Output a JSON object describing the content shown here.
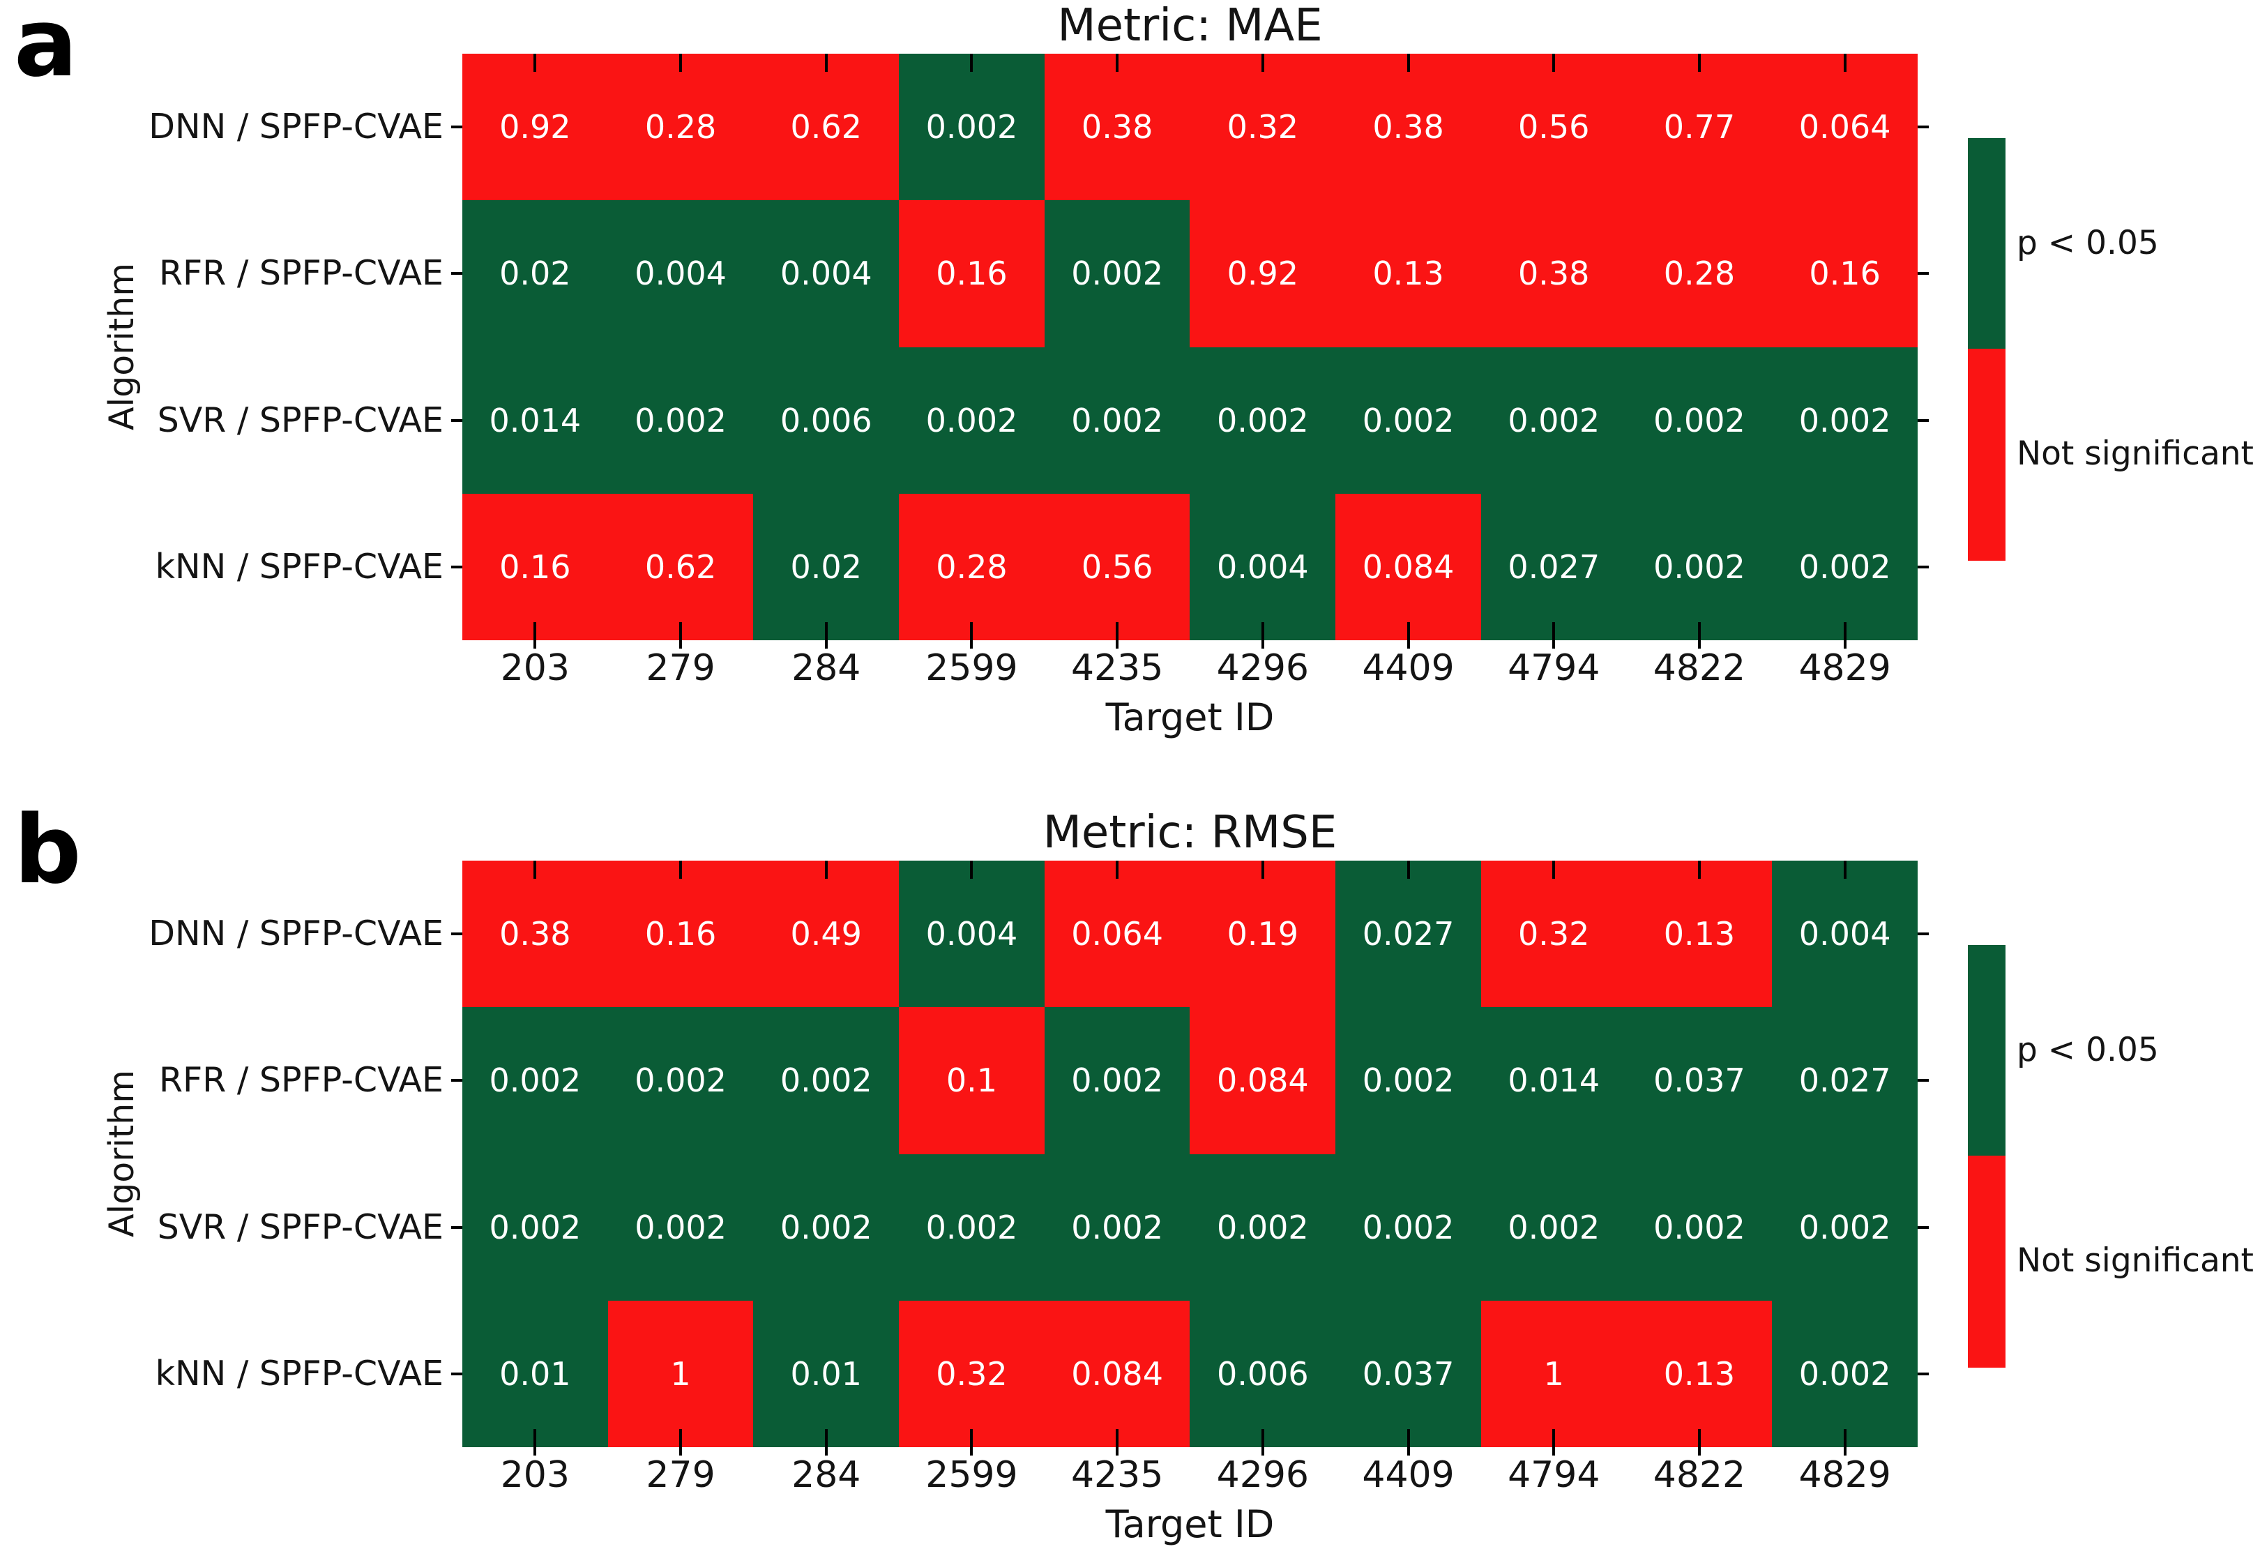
{
  "figure": {
    "panels": [
      {
        "letter": "a",
        "title": "Metric: MAE"
      },
      {
        "letter": "b",
        "title": "Metric: RMSE"
      }
    ],
    "legend": {
      "p_label": "p < 0.05",
      "ns_label": "Not significant"
    },
    "colors": {
      "significant": "#0a5c36",
      "not_significant": "#fa1414",
      "cell_text": "#ffffff",
      "tick": "#000000"
    }
  },
  "chart_data": [
    {
      "type": "heatmap",
      "panel": "a",
      "title": "Metric: MAE",
      "xlabel": "Target ID",
      "ylabel": "Algorithm",
      "columns": [
        "203",
        "279",
        "284",
        "2599",
        "4235",
        "4296",
        "4409",
        "4794",
        "4822",
        "4829"
      ],
      "rows": [
        "DNN / SPFP-CVAE",
        "RFR / SPFP-CVAE",
        "SVR / SPFP-CVAE",
        "kNN / SPFP-CVAE"
      ],
      "values": [
        [
          0.92,
          0.28,
          0.62,
          0.002,
          0.38,
          0.32,
          0.38,
          0.56,
          0.77,
          0.064
        ],
        [
          0.02,
          0.004,
          0.004,
          0.16,
          0.002,
          0.92,
          0.13,
          0.38,
          0.28,
          0.16
        ],
        [
          0.014,
          0.002,
          0.006,
          0.002,
          0.002,
          0.002,
          0.002,
          0.002,
          0.002,
          0.002
        ],
        [
          0.16,
          0.62,
          0.02,
          0.28,
          0.56,
          0.004,
          0.084,
          0.027,
          0.002,
          0.002
        ]
      ],
      "significance_threshold": 0.05,
      "legend_entries": [
        "p < 0.05",
        "Not significant"
      ],
      "legend_position": "right"
    },
    {
      "type": "heatmap",
      "panel": "b",
      "title": "Metric: RMSE",
      "xlabel": "Target ID",
      "ylabel": "Algorithm",
      "columns": [
        "203",
        "279",
        "284",
        "2599",
        "4235",
        "4296",
        "4409",
        "4794",
        "4822",
        "4829"
      ],
      "rows": [
        "DNN / SPFP-CVAE",
        "RFR / SPFP-CVAE",
        "SVR / SPFP-CVAE",
        "kNN / SPFP-CVAE"
      ],
      "values": [
        [
          0.38,
          0.16,
          0.49,
          0.004,
          0.064,
          0.19,
          0.027,
          0.32,
          0.13,
          0.004
        ],
        [
          0.002,
          0.002,
          0.002,
          0.1,
          0.002,
          0.084,
          0.002,
          0.014,
          0.037,
          0.027
        ],
        [
          0.002,
          0.002,
          0.002,
          0.002,
          0.002,
          0.002,
          0.002,
          0.002,
          0.002,
          0.002
        ],
        [
          0.01,
          1,
          0.01,
          0.32,
          0.084,
          0.006,
          0.037,
          1,
          0.13,
          0.002
        ]
      ],
      "significance_threshold": 0.05,
      "legend_entries": [
        "p < 0.05",
        "Not significant"
      ],
      "legend_position": "right"
    }
  ]
}
